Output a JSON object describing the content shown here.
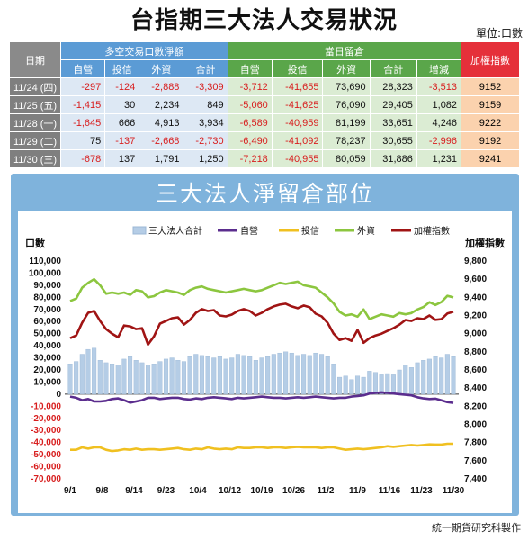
{
  "title": "台指期三大法人交易狀況",
  "unit": "單位:口數",
  "table": {
    "date_header": "日期",
    "group1": "多空交易口數淨額",
    "group2": "當日留倉",
    "group3": "加權指數",
    "cols1": [
      "自營",
      "投信",
      "外資",
      "合計"
    ],
    "cols2": [
      "自營",
      "投信",
      "外資",
      "合計",
      "增減"
    ],
    "rows": [
      {
        "date": "11/24 (四)",
        "c1": [
          "-297",
          "-124",
          "-2,888",
          "-3,309"
        ],
        "c2": [
          "-3,712",
          "-41,655",
          "73,690",
          "28,323",
          "-3,513"
        ],
        "idx": "9152"
      },
      {
        "date": "11/25 (五)",
        "c1": [
          "-1,415",
          "30",
          "2,234",
          "849"
        ],
        "c2": [
          "-5,060",
          "-41,625",
          "76,090",
          "29,405",
          "1,082"
        ],
        "idx": "9159"
      },
      {
        "date": "11/28 (一)",
        "c1": [
          "-1,645",
          "666",
          "4,913",
          "3,934"
        ],
        "c2": [
          "-6,589",
          "-40,959",
          "81,199",
          "33,651",
          "4,246"
        ],
        "idx": "9222"
      },
      {
        "date": "11/29 (二)",
        "c1": [
          "75",
          "-137",
          "-2,668",
          "-2,730"
        ],
        "c2": [
          "-6,490",
          "-41,092",
          "78,237",
          "30,655",
          "-2,996"
        ],
        "idx": "9192"
      },
      {
        "date": "11/30 (三)",
        "c1": [
          "-678",
          "137",
          "1,791",
          "1,250"
        ],
        "c2": [
          "-7,218",
          "-40,955",
          "80,059",
          "31,886",
          "1,231"
        ],
        "idx": "9241"
      }
    ]
  },
  "footer": "統一期貨研究科製作",
  "colors": {
    "bars": "#b5cde6",
    "prop": "#5b2d8e",
    "trust": "#f0c020",
    "foreign": "#8cc63f",
    "index": "#a01414"
  },
  "chart_data": {
    "type": "line",
    "title": "三大法人淨留倉部位",
    "ylabel": "口數",
    "y2label": "加權指數",
    "ylim": [
      -70000,
      110000
    ],
    "y2lim": [
      7400,
      9800
    ],
    "yticks": [
      "110,000",
      "100,000",
      "90,000",
      "80,000",
      "70,000",
      "60,000",
      "50,000",
      "40,000",
      "30,000",
      "20,000",
      "10,000",
      "0",
      "-10,000",
      "-20,000",
      "-30,000",
      "-40,000",
      "-50,000",
      "-60,000",
      "-70,000"
    ],
    "y2ticks": [
      "9,800",
      "9,600",
      "9,400",
      "9,200",
      "9,000",
      "8,800",
      "8,600",
      "8,400",
      "8,200",
      "8,000",
      "7,800",
      "7,600",
      "7,400"
    ],
    "xtick_labels": [
      "9/1",
      "9/8",
      "9/14",
      "9/23",
      "10/4",
      "10/12",
      "10/19",
      "10/26",
      "11/2",
      "11/9",
      "11/16",
      "11/23",
      "11/30"
    ],
    "legend": [
      "三大法人合計",
      "自營",
      "投信",
      "外資",
      "加權指數"
    ],
    "series": [
      {
        "name": "三大法人合計",
        "type": "bar",
        "values": [
          25000,
          27000,
          33000,
          37000,
          38000,
          28000,
          26000,
          25000,
          24000,
          29000,
          31000,
          28000,
          26000,
          24000,
          25000,
          27000,
          29000,
          30000,
          28000,
          27000,
          31000,
          33000,
          32000,
          31000,
          30000,
          31000,
          29000,
          30000,
          33000,
          32000,
          31000,
          28000,
          30000,
          31000,
          33000,
          34000,
          35000,
          34000,
          32000,
          33000,
          32000,
          34000,
          33000,
          31000,
          25000,
          14000,
          15000,
          12000,
          15000,
          14000,
          19000,
          18000,
          16000,
          17000,
          16000,
          20000,
          24000,
          22000,
          26000,
          28000,
          29000,
          31000,
          30000,
          33000,
          31000
        ]
      },
      {
        "name": "自營",
        "type": "line",
        "values": [
          -2000,
          -3000,
          -5000,
          -4000,
          -6000,
          -6000,
          -5500,
          -4000,
          -3500,
          -5000,
          -7000,
          -6000,
          -5000,
          -3000,
          -3000,
          -4000,
          -3500,
          -3000,
          -3000,
          -4000,
          -4500,
          -3500,
          -4000,
          -3000,
          -2500,
          -3000,
          -3500,
          -4000,
          -3000,
          -3500,
          -3000,
          -2500,
          -2000,
          -2500,
          -3000,
          -3000,
          -3500,
          -3000,
          -2500,
          -3000,
          -2500,
          -2000,
          -2500,
          -3000,
          -3500,
          -3000,
          -3000,
          -2000,
          -1500,
          -1000,
          500,
          1000,
          1500,
          1000,
          500,
          0,
          -500,
          -1000,
          -2500,
          -3500,
          -4000,
          -3712,
          -5060,
          -6589,
          -7218
        ]
      },
      {
        "name": "投信",
        "type": "line",
        "values": [
          -46000,
          -46000,
          -44000,
          -45000,
          -44000,
          -44000,
          -46000,
          -47000,
          -46500,
          -45500,
          -46000,
          -45000,
          -46000,
          -45500,
          -45500,
          -46000,
          -45500,
          -45000,
          -44500,
          -45500,
          -46000,
          -45000,
          -45500,
          -44000,
          -45000,
          -45500,
          -45000,
          -45500,
          -44000,
          -44500,
          -44500,
          -44000,
          -44000,
          -44500,
          -44000,
          -44000,
          -44500,
          -44000,
          -43500,
          -44000,
          -44000,
          -44000,
          -44500,
          -44000,
          -44000,
          -45000,
          -46000,
          -45500,
          -45000,
          -45500,
          -45000,
          -44500,
          -44000,
          -43000,
          -43500,
          -43000,
          -42500,
          -42000,
          -42500,
          -42000,
          -41500,
          -41655,
          -41625,
          -40959,
          -40955
        ]
      },
      {
        "name": "外資",
        "type": "line",
        "values": [
          77000,
          79000,
          88000,
          92000,
          95000,
          90000,
          83000,
          84000,
          83000,
          84000,
          82000,
          86000,
          85000,
          80000,
          81000,
          84000,
          86000,
          85000,
          84000,
          82000,
          86000,
          88000,
          89000,
          87000,
          86000,
          85000,
          84000,
          85000,
          86000,
          87000,
          86000,
          85000,
          86000,
          88000,
          90000,
          92000,
          91000,
          92000,
          93000,
          90000,
          89000,
          88000,
          84000,
          80000,
          75000,
          68000,
          65000,
          66000,
          64000,
          70000,
          62000,
          64000,
          66000,
          65000,
          64000,
          67000,
          66000,
          67000,
          70000,
          72000,
          76000,
          73690,
          76090,
          81199,
          80059
        ]
      },
      {
        "name": "加權指數",
        "type": "line",
        "axis": "right",
        "values": [
          8950,
          8980,
          9120,
          9230,
          9250,
          9140,
          9050,
          9000,
          8960,
          9090,
          9080,
          9050,
          9060,
          8880,
          8970,
          9110,
          9140,
          9170,
          9180,
          9100,
          9150,
          9230,
          9270,
          9250,
          9260,
          9200,
          9190,
          9210,
          9250,
          9270,
          9250,
          9200,
          9230,
          9270,
          9300,
          9320,
          9330,
          9300,
          9280,
          9310,
          9290,
          9220,
          9190,
          9120,
          9000,
          8930,
          8950,
          8920,
          9040,
          8900,
          8950,
          8980,
          9000,
          9030,
          9060,
          9100,
          9150,
          9140,
          9170,
          9160,
          9200,
          9152,
          9159,
          9222,
          9241
        ]
      }
    ]
  }
}
